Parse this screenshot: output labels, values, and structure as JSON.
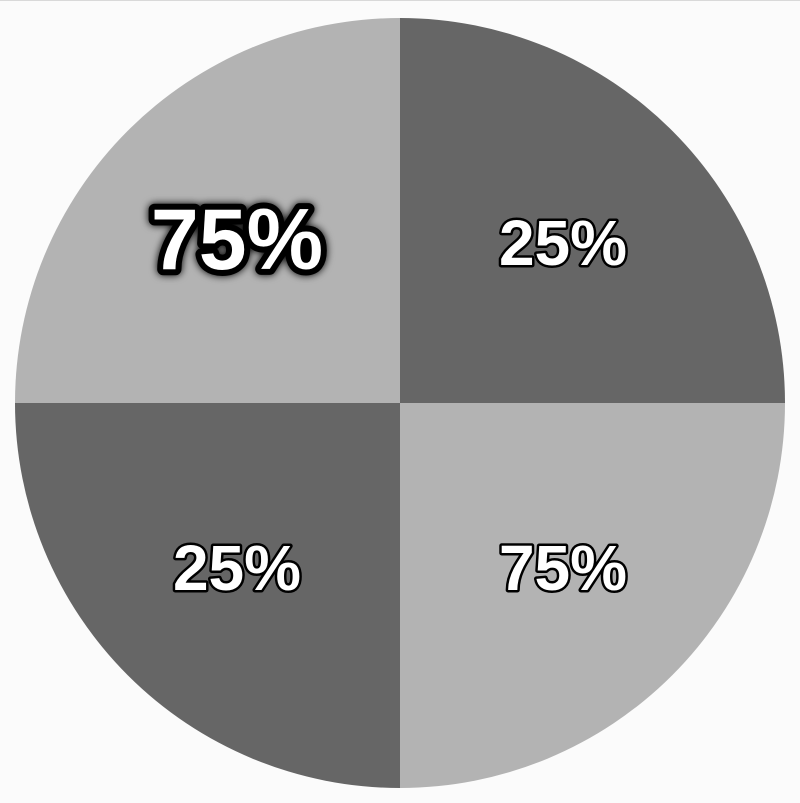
{
  "chart_data": {
    "type": "pie",
    "colors": {
      "dark": "#666666",
      "light": "#b3b3b3",
      "background": "#fbfbfb",
      "label_fill": "#ffffff",
      "label_outline": "#000000"
    },
    "slices": [
      {
        "quadrant": "top-right",
        "label": "25%",
        "color": "#666666",
        "emphasized": false
      },
      {
        "quadrant": "bottom-right",
        "label": "75%",
        "color": "#b3b3b3",
        "emphasized": false
      },
      {
        "quadrant": "bottom-left",
        "label": "25%",
        "color": "#666666",
        "emphasized": false
      },
      {
        "quadrant": "top-left",
        "label": "75%",
        "color": "#b3b3b3",
        "emphasized": true
      }
    ]
  }
}
